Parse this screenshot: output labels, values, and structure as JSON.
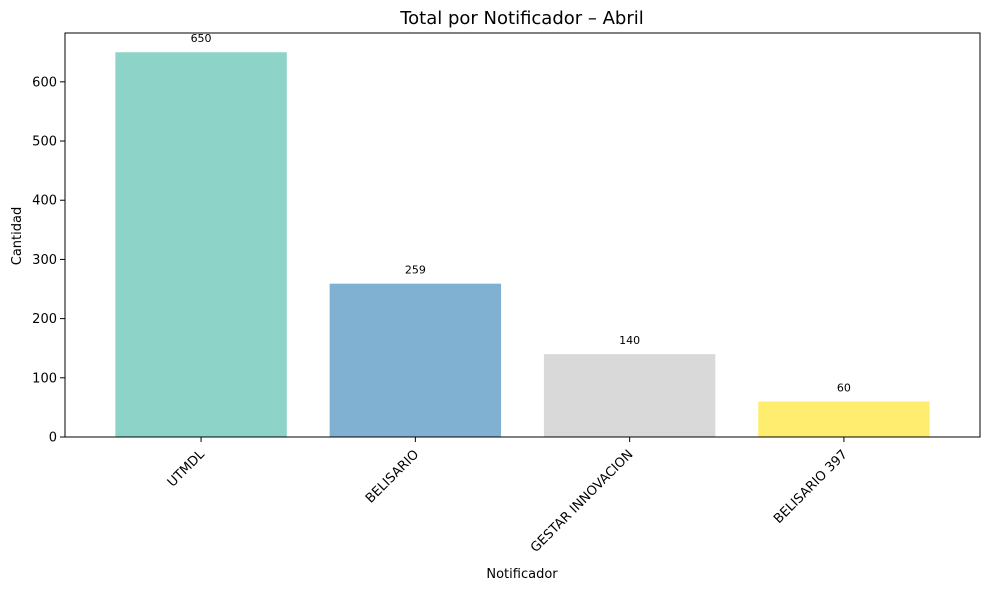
{
  "chart_data": {
    "type": "bar",
    "title": "Total por Notificador – Abril",
    "xlabel": "Notificador",
    "ylabel": "Cantidad",
    "categories": [
      "UTMDL",
      "BELISARIO",
      "GESTAR INNOVACION",
      "BELISARIO 397"
    ],
    "values": [
      650,
      259,
      140,
      60
    ],
    "value_labels": [
      "650",
      "259",
      "140",
      "60"
    ],
    "colors": [
      "#8dd3c7",
      "#80b1d3",
      "#d9d9d9",
      "#ffed6f"
    ],
    "ylim": [
      0,
      682.5
    ],
    "yticks": [
      0,
      100,
      200,
      300,
      400,
      500,
      600
    ],
    "grid": false,
    "legend": "none"
  }
}
